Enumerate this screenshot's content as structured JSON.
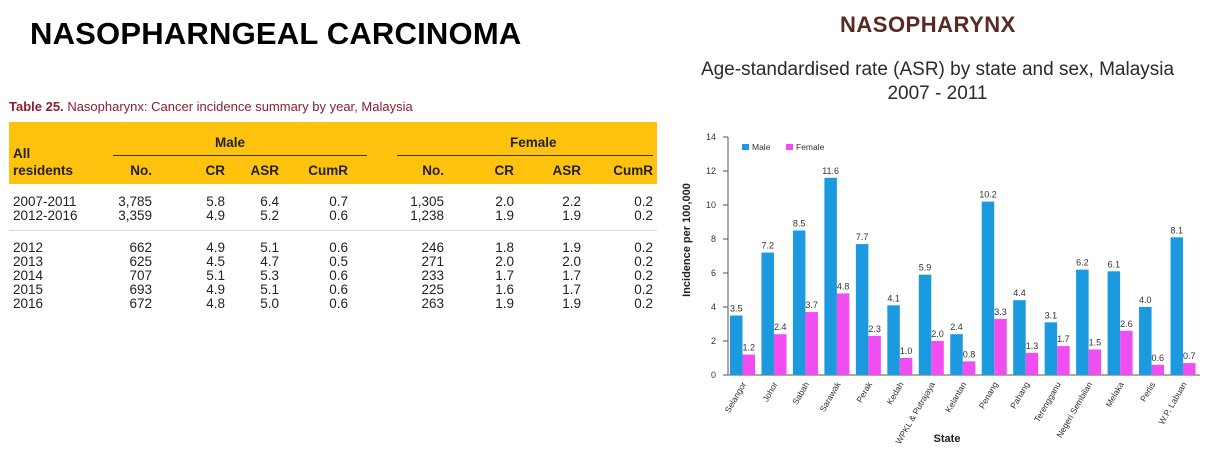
{
  "slide_title": "NASOPHARNGEAL CARCINOMA",
  "chart_heading": "NASOPHARYNX",
  "chart_subtitle_line1": "Age-standardised rate (ASR) by state and sex, Malaysia",
  "chart_subtitle_line2": "2007 - 2011",
  "table": {
    "caption_label": "Table 25.",
    "caption_text": "Nasopharynx: Cancer incidence summary by year, Malaysia",
    "corner_header": [
      "All",
      "residents"
    ],
    "group_male": "Male",
    "group_female": "Female",
    "columns": [
      "No.",
      "CR",
      "ASR",
      "CumR",
      "No.",
      "CR",
      "ASR",
      "CumR"
    ],
    "rows": [
      [
        "2007-2011",
        "3,785",
        "5.8",
        "6.4",
        "0.7",
        "1,305",
        "2.0",
        "2.2",
        "0.2"
      ],
      [
        "2012-2016",
        "3,359",
        "4.9",
        "5.2",
        "0.6",
        "1,238",
        "1.9",
        "1.9",
        "0.2"
      ],
      [
        "2012",
        "662",
        "4.9",
        "5.1",
        "0.6",
        "246",
        "1.8",
        "1.9",
        "0.2"
      ],
      [
        "2013",
        "625",
        "4.5",
        "4.7",
        "0.5",
        "271",
        "2.0",
        "2.0",
        "0.2"
      ],
      [
        "2014",
        "707",
        "5.1",
        "5.3",
        "0.6",
        "233",
        "1.7",
        "1.7",
        "0.2"
      ],
      [
        "2015",
        "693",
        "4.9",
        "5.1",
        "0.6",
        "225",
        "1.6",
        "1.7",
        "0.2"
      ],
      [
        "2016",
        "672",
        "4.8",
        "5.0",
        "0.6",
        "263",
        "1.9",
        "1.9",
        "0.2"
      ]
    ]
  },
  "chart_data": {
    "type": "bar",
    "xlabel": "State",
    "ylabel": "Incidence per 100,000",
    "ylim": [
      0,
      14
    ],
    "yticks": [
      0,
      2,
      4,
      6,
      8,
      10,
      12,
      14
    ],
    "legend_position": "top-left",
    "categories": [
      "Selangor",
      "Johor",
      "Sabah",
      "Sarawak",
      "Perak",
      "Kedah",
      "WPKL & Putrajaya",
      "Kelantan",
      "Penang",
      "Pahang",
      "Terengganu",
      "Negeri Sembilan",
      "Melaka",
      "Perlis",
      "W.P. Labuan"
    ],
    "series": [
      {
        "name": "Male",
        "color": "#1b9ae0",
        "values": [
          3.5,
          7.2,
          8.5,
          11.6,
          7.7,
          4.1,
          5.9,
          2.4,
          10.2,
          4.4,
          3.1,
          6.2,
          6.1,
          4.0,
          8.1
        ]
      },
      {
        "name": "Female",
        "color": "#f04ef0",
        "values": [
          1.2,
          2.4,
          3.7,
          4.8,
          2.3,
          1.0,
          2.0,
          0.8,
          3.3,
          1.3,
          1.7,
          1.5,
          2.6,
          0.6,
          0.7
        ]
      }
    ]
  }
}
